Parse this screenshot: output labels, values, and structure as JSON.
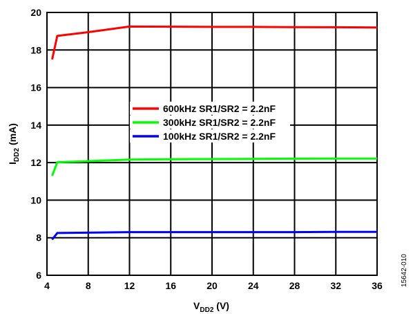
{
  "chart_data": {
    "type": "line",
    "title": "",
    "xlabel": {
      "main": "V",
      "sub": "DD2",
      "unit": " (V)"
    },
    "ylabel": {
      "main": "I",
      "sub": "DD2",
      "unit": " (mA)"
    },
    "xlim": [
      4,
      36
    ],
    "ylim": [
      6,
      20
    ],
    "xticks": [
      4,
      8,
      12,
      16,
      20,
      24,
      28,
      32,
      36
    ],
    "yticks": [
      6,
      8,
      10,
      12,
      14,
      16,
      18,
      20
    ],
    "grid": true,
    "legend_position": "center",
    "series": [
      {
        "name": "600kHz SR1/SR2 = 2.2nF",
        "color": "#ff0000",
        "x": [
          4.5,
          5,
          8,
          12,
          16,
          20,
          24,
          28,
          32,
          36
        ],
        "y": [
          17.5,
          18.75,
          18.95,
          19.25,
          19.24,
          19.23,
          19.23,
          19.22,
          19.21,
          19.2
        ]
      },
      {
        "name": "300kHz SR1/SR2 = 2.2nF",
        "color": "#00ff00",
        "x": [
          4.5,
          5,
          8,
          12,
          16,
          20,
          24,
          28,
          32,
          36
        ],
        "y": [
          11.3,
          12.02,
          12.08,
          12.16,
          12.18,
          12.19,
          12.2,
          12.21,
          12.22,
          12.22
        ]
      },
      {
        "name": "100kHz SR1/SR2 = 2.2nF",
        "color": "#0000ff",
        "x": [
          4.5,
          5,
          8,
          12,
          16,
          20,
          24,
          28,
          32,
          36
        ],
        "y": [
          7.9,
          8.25,
          8.27,
          8.3,
          8.3,
          8.3,
          8.3,
          8.3,
          8.31,
          8.31
        ]
      }
    ]
  },
  "figure_id": "15642-010"
}
